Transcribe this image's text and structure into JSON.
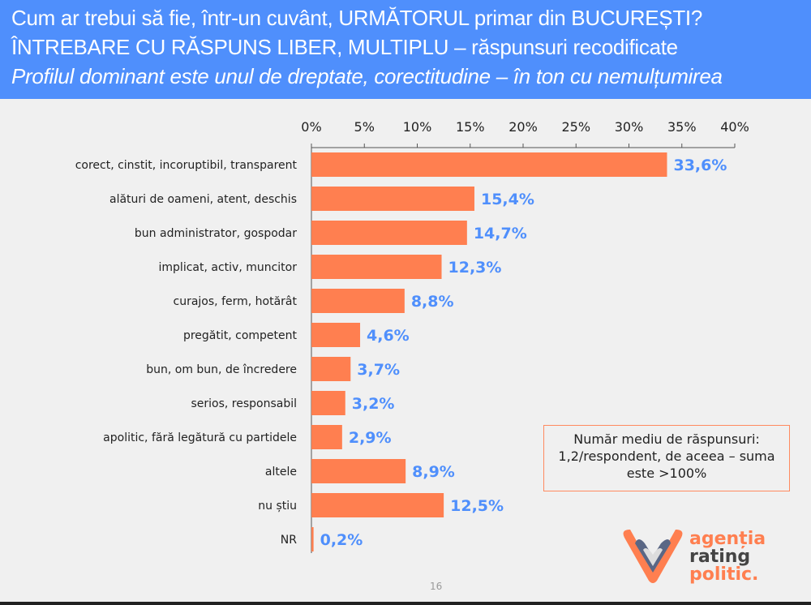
{
  "header": {
    "title": "Cum ar trebui să fie, într-un cuvânt, URMĂTORUL primar din BUCUREȘTI?",
    "subtitle": "ÎNTREBARE CU RĂSPUNS LIBER, MULTIPLU – răspunsuri recodificate",
    "insight": "Profilul dominant este unul de dreptate, corectitudine – în ton cu nemulțumirea"
  },
  "chart_data": {
    "type": "bar",
    "orientation": "horizontal",
    "xlim": [
      0,
      40
    ],
    "ticks": [
      "0%",
      "5%",
      "10%",
      "15%",
      "20%",
      "25%",
      "30%",
      "35%",
      "40%"
    ],
    "categories": [
      "corect, cinstit, incoruptibil, transparent",
      "alături de oameni, atent, deschis",
      "bun administrator, gospodar",
      "implicat, activ, muncitor",
      "curajos, ferm, hotărât",
      "pregătit, competent",
      "bun, om bun, de încredere",
      "serios, responsabil",
      "apolitic, fără legătură cu partidele",
      "altele",
      "nu știu",
      "NR"
    ],
    "values": [
      33.6,
      15.4,
      14.7,
      12.3,
      8.8,
      4.6,
      3.7,
      3.2,
      2.9,
      8.9,
      12.5,
      0.2
    ],
    "labels": [
      "33,6%",
      "15,4%",
      "14,7%",
      "12,3%",
      "8,8%",
      "4,6%",
      "3,7%",
      "3,2%",
      "2,9%",
      "8,9%",
      "12,5%",
      "0,2%"
    ],
    "bar_color": "#ff7f50",
    "label_color": "#4f8ffc"
  },
  "note": {
    "line1": "Număr mediu de răspunsuri:",
    "line2": "1,2/respondent, de aceea – suma",
    "line3": "este >100%"
  },
  "logo": {
    "text": "agenția de rating politic."
  },
  "page_number": "16"
}
